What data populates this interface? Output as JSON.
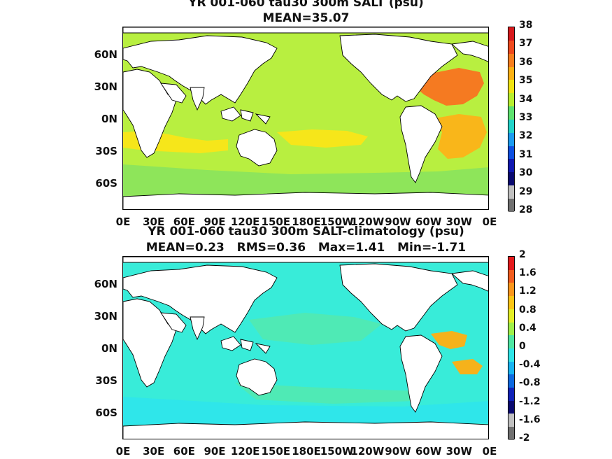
{
  "panels": [
    {
      "title": "YR 001-060 tau30 300m SALT (psu)",
      "subtitle": "MEAN=35.07",
      "colorbar_ticks": [
        "38",
        "37",
        "36",
        "35",
        "34",
        "33",
        "32",
        "31",
        "30",
        "29",
        "28"
      ],
      "colorbar_colors": [
        "#d7191c",
        "#ef4a1e",
        "#f77e1e",
        "#fbb114",
        "#f1e413",
        "#b8ef2f",
        "#5ee26f",
        "#22d3c9",
        "#1b9bf0",
        "#0d4fe0",
        "#1018b0",
        "#0a0a70",
        "#c0c0c0",
        "#707070"
      ],
      "ocean_color": "#b8ef40",
      "highlights": [
        {
          "name": "north-atlantic-high-salinity",
          "color": "#f57a21"
        },
        {
          "name": "south-atlantic-high-salinity",
          "color": "#f9b61a"
        },
        {
          "name": "indian-ocean-band",
          "color": "#f6e61a"
        },
        {
          "name": "south-pacific-band",
          "color": "#f6e61a"
        },
        {
          "name": "southern-ocean",
          "color": "#8ee55a"
        }
      ]
    },
    {
      "title": "YR 001-060 tau30 300m SALT-climatology (psu)",
      "subtitle": "MEAN=0.23   RMS=0.36   Max=1.41   Min=-1.71",
      "colorbar_ticks": [
        "2",
        "1.6",
        "1.2",
        "0.8",
        "0.4",
        "0",
        "-0.4",
        "-0.8",
        "-1.2",
        "-1.6",
        "-2"
      ],
      "colorbar_colors": [
        "#e41a1c",
        "#f25c1e",
        "#fa961c",
        "#fbc515",
        "#e4ee27",
        "#9ff04a",
        "#4fe7a3",
        "#2fe5e8",
        "#17b4f2",
        "#0d69e0",
        "#1022b8",
        "#0a0a70",
        "#c0c0c0",
        "#707070"
      ],
      "ocean_color": "#38ecd9",
      "highlights": [
        {
          "name": "atlantic-positive-anomaly",
          "color": "#f6b21b"
        },
        {
          "name": "pacific-equatorial-band",
          "color": "#4feab5"
        },
        {
          "name": "southern-ocean-anomaly",
          "color": "#2fe6ea"
        }
      ]
    }
  ],
  "y_tick_labels": [
    "60N",
    "30N",
    "0N",
    "30S",
    "60S"
  ],
  "x_tick_labels": [
    "0E",
    "30E",
    "60E",
    "90E",
    "120E",
    "150E",
    "180E",
    "150W",
    "120W",
    "90W",
    "60W",
    "30W",
    "0E"
  ]
}
